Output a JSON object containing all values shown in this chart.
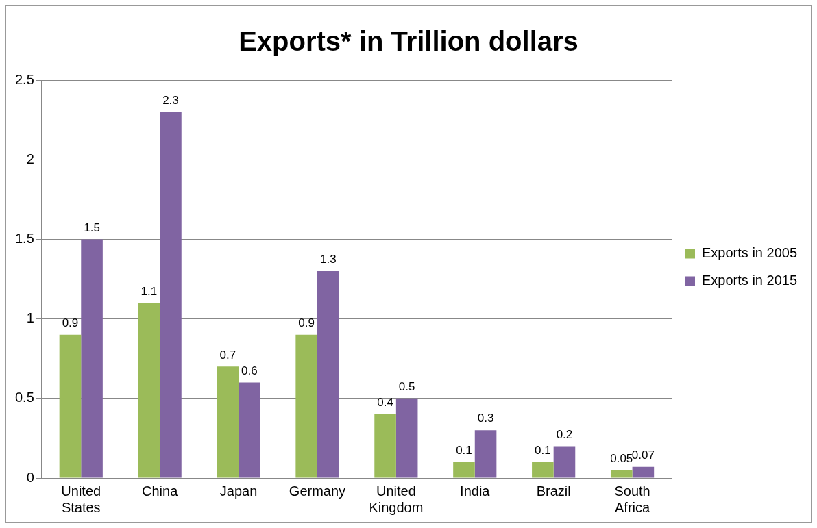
{
  "chart_data": {
    "type": "bar",
    "title": "Exports* in Trillion dollars",
    "categories": [
      "United States",
      "China",
      "Japan",
      "Germany",
      "United Kingdom",
      "India",
      "Brazil",
      "South Africa"
    ],
    "series": [
      {
        "name": "Exports in 2005",
        "color": "#9bbb59",
        "values": [
          0.9,
          1.1,
          0.7,
          0.9,
          0.4,
          0.1,
          0.1,
          0.05
        ]
      },
      {
        "name": "Exports in 2015",
        "color": "#8064a2",
        "values": [
          1.5,
          2.3,
          0.6,
          1.3,
          0.5,
          0.3,
          0.2,
          0.07
        ]
      }
    ],
    "ylim": [
      0,
      2.5
    ],
    "yticks": [
      0,
      0.5,
      1,
      1.5,
      2,
      2.5
    ],
    "grid": "y",
    "legend": "right",
    "data_labels": true
  }
}
